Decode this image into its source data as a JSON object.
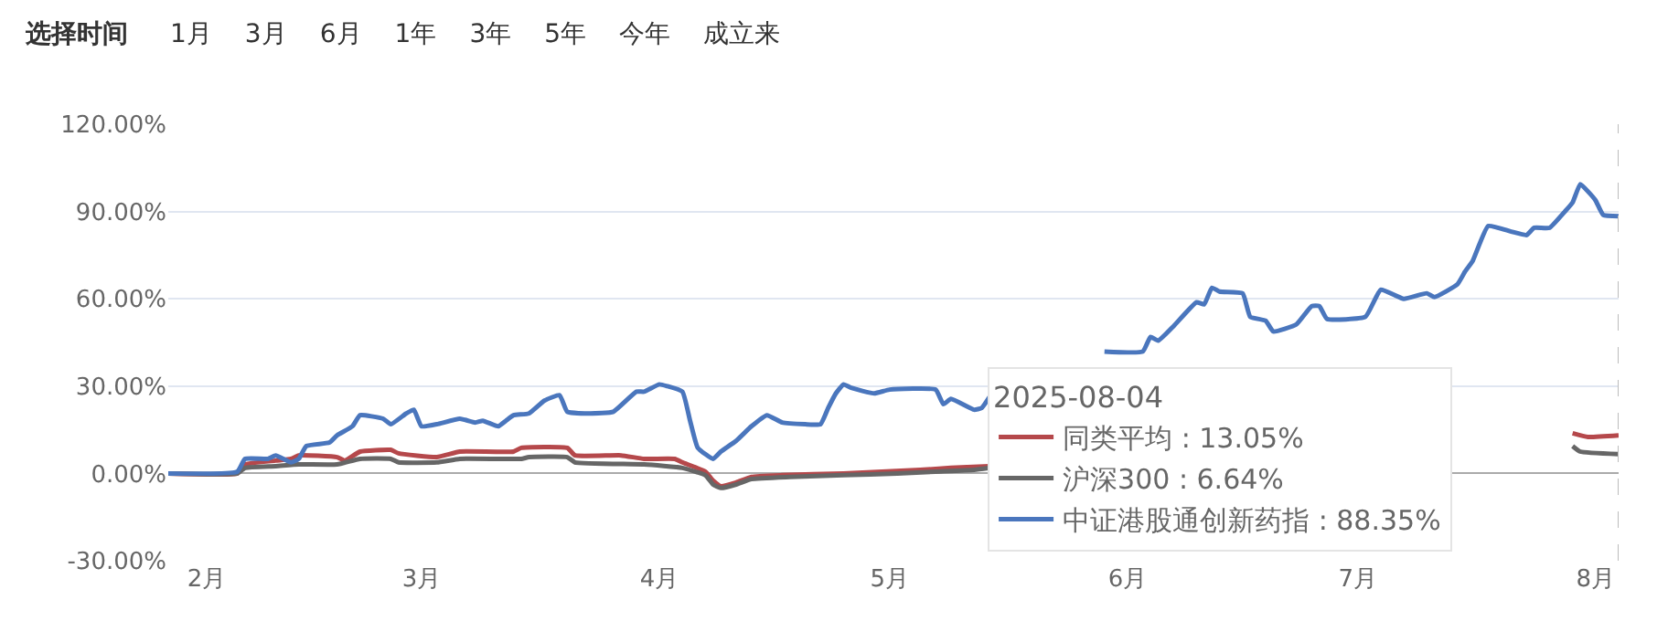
{
  "chart_data": {
    "type": "line",
    "annotations": [
      "选择时间",
      "1月",
      "3月",
      "6月",
      "1年",
      "3年",
      "5年",
      "今年",
      "成立来"
    ],
    "legend": "bottom right",
    "legend_title": "2025-08-04",
    "xlim": [
      "2025-01-27",
      "2025-08-04"
    ],
    "xticks": [
      {
        "value": "2025-02-01",
        "label": "2月"
      },
      {
        "value": "2025-03-01",
        "label": "3月"
      },
      {
        "value": "2025-04-01",
        "label": "4月"
      },
      {
        "value": "2025-05-01",
        "label": "5月"
      },
      {
        "value": "2025-06-01",
        "label": "6月"
      },
      {
        "value": "2025-07-01",
        "label": "7月"
      },
      {
        "value": "2025-08-01",
        "label": "8月"
      }
    ],
    "ylim": [
      -30,
      120
    ],
    "yticks": [
      {
        "value": -30,
        "label": "-30.00%"
      },
      {
        "value": 0,
        "label": "0.00%"
      },
      {
        "value": 30,
        "label": "30.00%"
      },
      {
        "value": 60,
        "label": "60.00%"
      },
      {
        "value": 90,
        "label": "90.00%"
      },
      {
        "value": 120,
        "label": "120.00%"
      }
    ],
    "grid": "y",
    "marker": "none",
    "line_style": "solid",
    "ref_lines": [
      {
        "axis": "x",
        "value": "2025-08-04",
        "color": "#bbbbbb",
        "line_style": "dashed"
      }
    ],
    "series": [
      {
        "name": "同类平均 : 13.05%",
        "color": "#b5484b",
        "x": [
          "2025-01-27",
          "2025-02-05",
          "2025-02-06",
          "2025-02-10",
          "2025-02-12",
          "2025-02-13",
          "2025-02-18",
          "2025-02-19",
          "2025-02-21",
          "2025-02-25",
          "2025-02-26",
          "2025-03-03",
          "2025-03-06",
          "2025-03-13",
          "2025-03-14",
          "2025-03-20",
          "2025-03-21",
          "2025-03-27",
          "2025-03-30",
          "2025-04-03",
          "2025-04-04",
          "2025-04-07",
          "2025-04-08",
          "2025-04-09",
          "2025-04-11",
          "2025-04-13",
          "2025-04-17",
          "2025-04-25",
          "2025-04-30",
          "2025-05-05",
          "2025-05-09",
          "2025-05-14",
          "2025-05-22",
          "2025-07-29",
          "2025-07-31",
          "2025-08-04"
        ],
        "values": [
          0,
          0,
          3.1,
          4.4,
          5,
          6.2,
          5.6,
          4.4,
          7.5,
          8.1,
          6.9,
          5.6,
          7.5,
          7.5,
          8.8,
          8.8,
          6.2,
          6.2,
          5,
          5,
          3.8,
          0.6,
          -2.5,
          -4.4,
          -3.1,
          -1.2,
          -0.6,
          0,
          0.6,
          1.2,
          1.9,
          2.5,
          null,
          13.8,
          12.5,
          13.05
        ]
      },
      {
        "name": "沪深300 : 6.64%",
        "color": "#666666",
        "x": [
          "2025-01-27",
          "2025-02-05",
          "2025-02-06",
          "2025-02-10",
          "2025-02-13",
          "2025-02-18",
          "2025-02-21",
          "2025-02-25",
          "2025-02-26",
          "2025-03-03",
          "2025-03-06",
          "2025-03-14",
          "2025-03-15",
          "2025-03-20",
          "2025-03-21",
          "2025-03-30",
          "2025-04-04",
          "2025-04-07",
          "2025-04-08",
          "2025-04-09",
          "2025-04-11",
          "2025-04-13",
          "2025-04-18",
          "2025-04-25",
          "2025-05-02",
          "2025-05-07",
          "2025-05-12",
          "2025-05-14",
          "2025-05-22",
          "2025-07-29",
          "2025-07-30",
          "2025-08-04"
        ],
        "values": [
          0,
          0,
          1.9,
          2.5,
          3.1,
          3.1,
          5,
          5,
          3.8,
          3.8,
          5,
          5,
          5.6,
          5.6,
          3.8,
          3.1,
          1.9,
          -0.6,
          -3.8,
          -5,
          -3.8,
          -1.9,
          -1.2,
          -0.6,
          0,
          0.6,
          1.2,
          1.9,
          null,
          9.4,
          7.5,
          6.64
        ]
      },
      {
        "name": "中证港股通创新药指 : 88.35%",
        "color": "#4a76bd",
        "x": [
          "2025-01-27",
          "2025-02-05",
          "2025-02-06",
          "2025-02-09",
          "2025-02-10",
          "2025-02-12",
          "2025-02-13",
          "2025-02-14",
          "2025-02-17",
          "2025-02-18",
          "2025-02-20",
          "2025-02-21",
          "2025-02-24",
          "2025-02-25",
          "2025-02-27",
          "2025-02-28",
          "2025-03-01",
          "2025-03-03",
          "2025-03-06",
          "2025-03-08",
          "2025-03-09",
          "2025-03-11",
          "2025-03-12",
          "2025-03-13",
          "2025-03-15",
          "2025-03-17",
          "2025-03-19",
          "2025-03-20",
          "2025-03-23",
          "2025-03-26",
          "2025-03-29",
          "2025-03-30",
          "2025-04-01",
          "2025-04-02",
          "2025-04-04",
          "2025-04-05",
          "2025-04-06",
          "2025-04-08",
          "2025-04-09",
          "2025-04-11",
          "2025-04-13",
          "2025-04-15",
          "2025-04-17",
          "2025-04-20",
          "2025-04-22",
          "2025-04-23",
          "2025-04-24",
          "2025-04-25",
          "2025-04-26",
          "2025-04-29",
          "2025-05-01",
          "2025-05-07",
          "2025-05-08",
          "2025-05-09",
          "2025-05-12",
          "2025-05-13",
          "2025-05-14",
          "2025-05-22",
          "2025-05-29",
          "2025-06-03",
          "2025-06-04",
          "2025-06-05",
          "2025-06-07",
          "2025-06-10",
          "2025-06-11",
          "2025-06-12",
          "2025-06-13",
          "2025-06-16",
          "2025-06-17",
          "2025-06-19",
          "2025-06-20",
          "2025-06-23",
          "2025-06-25",
          "2025-06-26",
          "2025-06-27",
          "2025-07-02",
          "2025-07-04",
          "2025-07-07",
          "2025-07-10",
          "2025-07-11",
          "2025-07-14",
          "2025-07-15",
          "2025-07-16",
          "2025-07-18",
          "2025-07-21",
          "2025-07-23",
          "2025-07-24",
          "2025-07-26",
          "2025-07-28",
          "2025-07-29",
          "2025-07-30",
          "2025-07-31",
          "2025-08-01",
          "2025-08-02",
          "2025-08-04"
        ],
        "values": [
          0,
          0.6,
          5,
          5,
          6.2,
          3.8,
          5,
          9.4,
          10.6,
          13.1,
          16.2,
          20,
          18.8,
          16.9,
          20.6,
          21.9,
          16.2,
          16.9,
          18.8,
          17.5,
          18.1,
          16.2,
          18.1,
          20,
          20.6,
          25,
          26.9,
          21.2,
          20.6,
          21.2,
          28.1,
          28.1,
          30.6,
          30,
          28.1,
          18.1,
          8.8,
          5,
          7.5,
          11.2,
          16.2,
          20,
          17.5,
          16.9,
          16.9,
          22.5,
          27.5,
          30.6,
          29.4,
          27.5,
          28.8,
          28.8,
          23.8,
          25.6,
          21.9,
          22.5,
          26.2,
          null,
          41.9,
          41.9,
          46.9,
          45.6,
          50.6,
          58.8,
          58.1,
          63.8,
          62.5,
          61.9,
          53.8,
          52.5,
          48.8,
          51.2,
          57.5,
          57.5,
          53.1,
          53.8,
          63.1,
          60,
          61.9,
          60.6,
          65,
          69.4,
          73.1,
          85,
          83.1,
          81.9,
          84.4,
          84.4,
          90,
          93.1,
          99.4,
          96.9,
          93.8,
          88.8,
          88.35
        ]
      }
    ]
  }
}
